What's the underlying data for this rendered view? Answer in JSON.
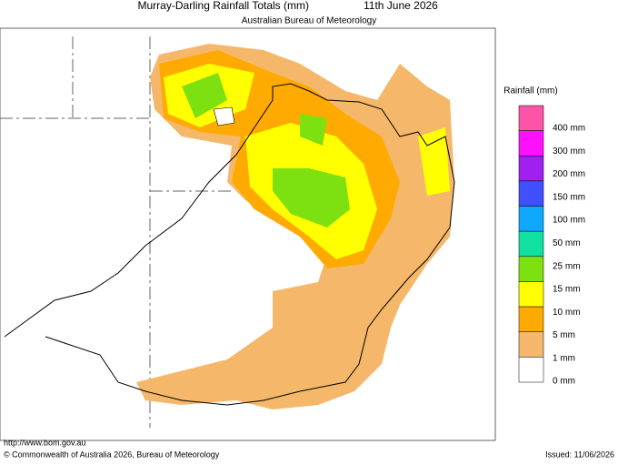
{
  "header": {
    "title": "Murray-Darling Rainfall Totals (mm)",
    "date": "11th June 2026",
    "subtitle": "Australian Bureau of Meteorology"
  },
  "legend": {
    "title": "Rainfall (mm)",
    "labels": [
      "400 mm",
      "300 mm",
      "200 mm",
      "150 mm",
      "100 mm",
      "50 mm",
      "25 mm",
      "15 mm",
      "10 mm",
      "5 mm",
      "1 mm",
      "0 mm"
    ],
    "colors": [
      "#ff55a8",
      "#ff10ff",
      "#a020f0",
      "#4050ff",
      "#10a8ff",
      "#10e0a0",
      "#7de010",
      "#ffff00",
      "#ffaa00",
      "#f5b86a",
      "#ffffff"
    ]
  },
  "footer": {
    "url": "http://www.bom.gov.au",
    "copyright": "© Commonwealth of Australia 2026, Bureau of Meteorology",
    "issued": "Issued: 11/06/2026"
  }
}
